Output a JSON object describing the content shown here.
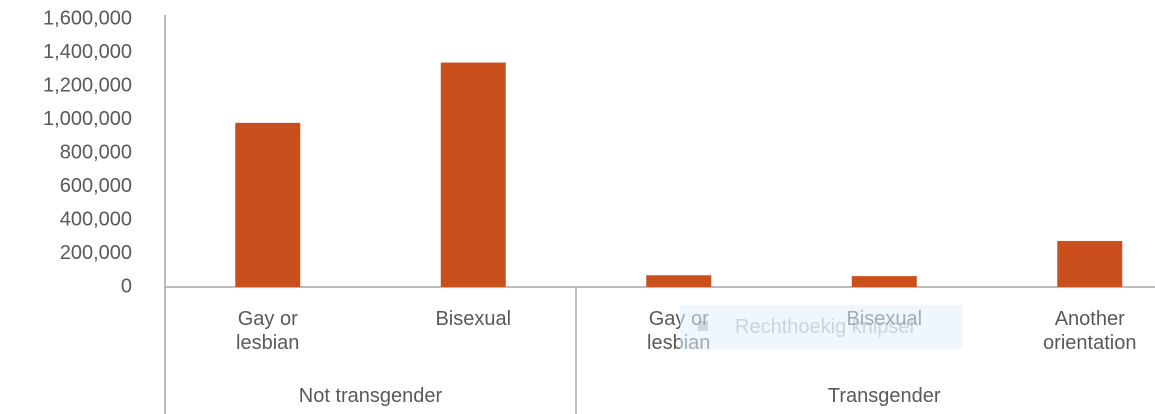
{
  "chart_data": {
    "type": "bar",
    "color": "#c9501c",
    "groups": [
      {
        "name": "Not transgender",
        "categories": [
          "Gay or lesbian",
          "Bisexual"
        ],
        "values": [
          980000,
          1340000
        ]
      },
      {
        "name": "Transgender",
        "categories": [
          "Gay or lesbian",
          "Bisexual",
          "Another orientation"
        ],
        "values": [
          70000,
          65000,
          275000
        ]
      }
    ],
    "ylim": [
      0,
      1600000
    ],
    "yticks": [
      0,
      {
        "value": 200000,
        "label": "200,000"
      },
      {
        "value": 400000,
        "label": "400,000"
      },
      {
        "value": 600000,
        "label": "600,000"
      },
      {
        "value": 800000,
        "label": "800,000"
      },
      {
        "value": 1000000,
        "label": "1,000,000"
      },
      {
        "value": 1200000,
        "label": "1,200,000"
      },
      {
        "value": 1400000,
        "label": "1,400,000"
      },
      {
        "value": 1600000,
        "label": "1,600,000"
      }
    ],
    "grid": false
  },
  "overlay_text": "Rechthoekig knipsel"
}
